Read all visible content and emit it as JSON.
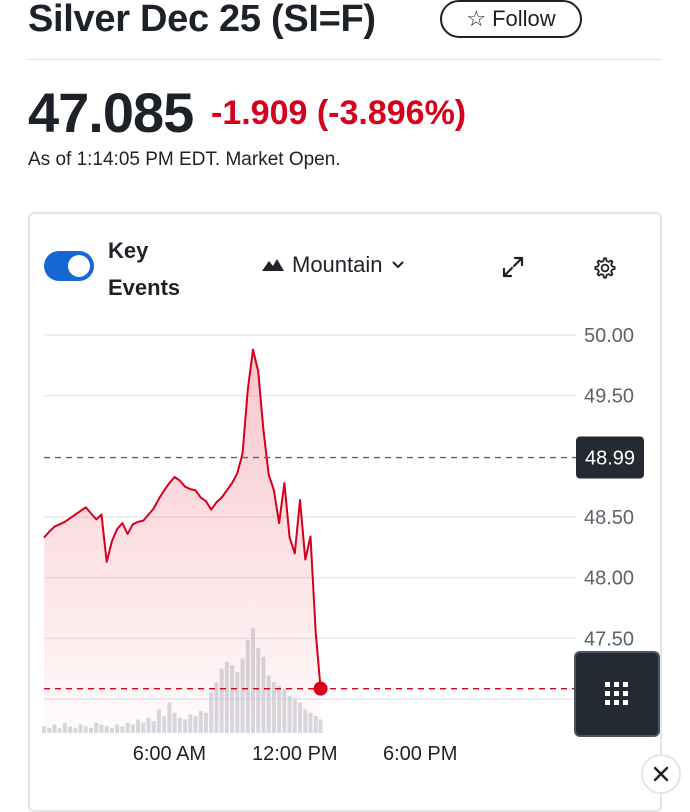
{
  "header": {
    "title": "Silver Dec 25 (SI=F)",
    "follow_label": "Follow",
    "follow_icon": "star-outline-icon"
  },
  "quote": {
    "price": "47.085",
    "change": "-1.909 (-3.896%)",
    "as_of": "As of 1:14:05 PM EDT. Market Open.",
    "down_color": "#d6001c"
  },
  "controls": {
    "key_events_label": "Key Events",
    "key_events_on": true,
    "chart_type_label": "Mountain",
    "chart_type_icon": "mountain-icon",
    "expand_icon": "expand-icon",
    "settings_icon": "gear-icon",
    "grid_icon": "grid-dots-icon",
    "close_icon": "close-icon"
  },
  "chart_data": {
    "type": "area",
    "ylim": [
      47.0,
      50.0
    ],
    "y_ticks": [
      "50.00",
      "49.50",
      "48.50",
      "48.00",
      "47.50"
    ],
    "x_ticks": [
      "6:00 AM",
      "12:00 PM",
      "6:00 PM"
    ],
    "previous_close": 48.99,
    "previous_close_label": "48.99",
    "current_price": 47.085,
    "series": [
      {
        "color": "#d6001c",
        "x": [
          "00:00",
          "00:15",
          "00:30",
          "00:45",
          "01:00",
          "01:15",
          "01:30",
          "01:45",
          "02:00",
          "02:15",
          "02:30",
          "02:45",
          "03:00",
          "03:15",
          "03:30",
          "03:45",
          "04:00",
          "04:15",
          "04:30",
          "04:45",
          "05:00",
          "05:15",
          "05:30",
          "05:45",
          "06:00",
          "06:15",
          "06:30",
          "06:45",
          "07:00",
          "07:15",
          "07:30",
          "07:45",
          "08:00",
          "08:15",
          "08:30",
          "08:45",
          "09:00",
          "09:15",
          "09:30",
          "09:45",
          "10:00",
          "10:15",
          "10:30",
          "10:45",
          "11:00",
          "11:15",
          "11:30",
          "11:45",
          "12:00",
          "12:15",
          "12:30",
          "12:45",
          "13:00",
          "13:14"
        ],
        "values": [
          48.33,
          48.38,
          48.42,
          48.44,
          48.46,
          48.49,
          48.52,
          48.55,
          48.58,
          48.53,
          48.48,
          48.52,
          48.13,
          48.3,
          48.4,
          48.45,
          48.36,
          48.44,
          48.46,
          48.47,
          48.52,
          48.57,
          48.65,
          48.72,
          48.78,
          48.83,
          48.8,
          48.75,
          48.73,
          48.72,
          48.66,
          48.63,
          48.56,
          48.62,
          48.66,
          48.72,
          48.78,
          48.86,
          49.02,
          49.55,
          49.88,
          49.7,
          49.22,
          48.85,
          48.72,
          48.45,
          48.78,
          48.33,
          48.2,
          48.64,
          48.15,
          48.34,
          47.55,
          47.085
        ]
      }
    ],
    "volume": [
      4,
      3,
      5,
      3,
      6,
      4,
      3,
      5,
      4,
      3,
      6,
      5,
      4,
      3,
      5,
      4,
      6,
      5,
      8,
      6,
      9,
      7,
      14,
      10,
      18,
      12,
      9,
      8,
      11,
      10,
      13,
      12,
      24,
      30,
      38,
      42,
      40,
      36,
      44,
      55,
      62,
      50,
      45,
      34,
      30,
      28,
      26,
      22,
      20,
      18,
      14,
      12,
      10,
      8
    ]
  }
}
